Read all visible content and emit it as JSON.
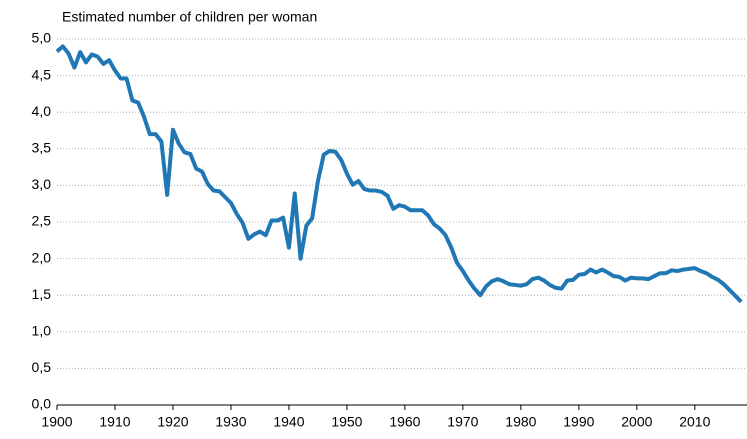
{
  "chart_data": {
    "type": "line",
    "title": "Estimated number of children per woman",
    "x": [
      1900,
      1901,
      1902,
      1903,
      1904,
      1905,
      1906,
      1907,
      1908,
      1909,
      1910,
      1911,
      1912,
      1913,
      1914,
      1915,
      1916,
      1917,
      1918,
      1919,
      1920,
      1921,
      1922,
      1923,
      1924,
      1925,
      1926,
      1927,
      1928,
      1929,
      1930,
      1931,
      1932,
      1933,
      1934,
      1935,
      1936,
      1937,
      1938,
      1939,
      1940,
      1941,
      1942,
      1943,
      1944,
      1945,
      1946,
      1947,
      1948,
      1949,
      1950,
      1951,
      1952,
      1953,
      1954,
      1955,
      1956,
      1957,
      1958,
      1959,
      1960,
      1961,
      1962,
      1963,
      1964,
      1965,
      1966,
      1967,
      1968,
      1969,
      1970,
      1971,
      1972,
      1973,
      1974,
      1975,
      1976,
      1977,
      1978,
      1979,
      1980,
      1981,
      1982,
      1983,
      1984,
      1985,
      1986,
      1987,
      1988,
      1989,
      1990,
      1991,
      1992,
      1993,
      1994,
      1995,
      1996,
      1997,
      1998,
      1999,
      2000,
      2001,
      2002,
      2003,
      2004,
      2005,
      2006,
      2007,
      2008,
      2009,
      2010,
      2011,
      2012,
      2013,
      2014,
      2015,
      2016,
      2017,
      2018
    ],
    "values": [
      4.83,
      4.9,
      4.8,
      4.61,
      4.82,
      4.68,
      4.79,
      4.76,
      4.66,
      4.71,
      4.57,
      4.46,
      4.46,
      4.16,
      4.13,
      3.94,
      3.7,
      3.7,
      3.6,
      2.87,
      3.76,
      3.57,
      3.45,
      3.43,
      3.23,
      3.19,
      3.02,
      2.93,
      2.92,
      2.84,
      2.76,
      2.61,
      2.49,
      2.27,
      2.33,
      2.37,
      2.32,
      2.52,
      2.52,
      2.56,
      2.15,
      2.89,
      2.0,
      2.45,
      2.55,
      3.06,
      3.42,
      3.47,
      3.46,
      3.35,
      3.16,
      3.01,
      3.06,
      2.95,
      2.93,
      2.93,
      2.91,
      2.86,
      2.68,
      2.73,
      2.71,
      2.66,
      2.66,
      2.66,
      2.59,
      2.47,
      2.41,
      2.32,
      2.15,
      1.94,
      1.83,
      1.7,
      1.59,
      1.5,
      1.62,
      1.69,
      1.72,
      1.69,
      1.65,
      1.64,
      1.63,
      1.65,
      1.72,
      1.74,
      1.7,
      1.64,
      1.6,
      1.59,
      1.7,
      1.71,
      1.78,
      1.79,
      1.85,
      1.81,
      1.85,
      1.81,
      1.76,
      1.75,
      1.7,
      1.74,
      1.73,
      1.73,
      1.72,
      1.76,
      1.8,
      1.8,
      1.84,
      1.83,
      1.85,
      1.86,
      1.87,
      1.83,
      1.8,
      1.75,
      1.71,
      1.65,
      1.57,
      1.49,
      1.41
    ],
    "color": "#1f77b4",
    "xlim": [
      1900,
      2019
    ],
    "xticks": [
      1900,
      1910,
      1920,
      1930,
      1940,
      1950,
      1960,
      1970,
      1980,
      1990,
      2000,
      2010
    ],
    "ylim": [
      0,
      5
    ],
    "yticks": [
      {
        "value": 0,
        "label": "0,0"
      },
      {
        "value": 0.5,
        "label": "0,5"
      },
      {
        "value": 1,
        "label": "1,0"
      },
      {
        "value": 1.5,
        "label": "1,5"
      },
      {
        "value": 2,
        "label": "2,0"
      },
      {
        "value": 2.5,
        "label": "2,5"
      },
      {
        "value": 3,
        "label": "3,0"
      },
      {
        "value": 3.5,
        "label": "3,5"
      },
      {
        "value": 4,
        "label": "4,0"
      },
      {
        "value": 4.5,
        "label": "4,5"
      },
      {
        "value": 5,
        "label": "5,0"
      }
    ],
    "grid": true
  }
}
